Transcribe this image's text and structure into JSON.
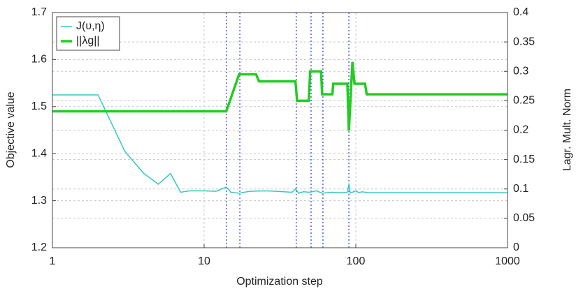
{
  "chart_data": {
    "type": "line",
    "xlabel": "Optimization step",
    "ylabel": "Objective value",
    "y2label": "Lagr. Mult. Norm",
    "xscale": "log",
    "xlim": [
      1,
      1000
    ],
    "xticks": [
      1,
      10,
      100,
      1000
    ],
    "ylim": [
      1.2,
      1.7
    ],
    "yticks": [
      1.2,
      1.3,
      1.4,
      1.5,
      1.6,
      1.7
    ],
    "y2lim": [
      0,
      0.4
    ],
    "y2ticks": [
      0,
      0.05,
      0.1,
      0.15,
      0.2,
      0.25,
      0.3,
      0.35,
      0.4
    ],
    "grid": true,
    "legend": "upper left",
    "vlines": [
      14,
      17.2,
      40.5,
      50.7,
      60.7,
      90
    ],
    "vline_color": "#2233dd",
    "series": [
      {
        "name": "J(υ,η)",
        "color": "#33c9c0",
        "width": 1.5,
        "x": [
          1,
          2,
          3,
          4,
          5,
          6,
          7,
          8,
          10,
          12,
          14,
          15,
          17,
          20,
          25,
          30,
          38,
          40,
          42,
          45,
          50,
          55,
          60,
          70,
          80,
          88,
          90,
          92,
          100,
          105,
          110,
          120,
          200,
          500,
          1000
        ],
        "values": [
          1.525,
          1.525,
          1.405,
          1.358,
          1.335,
          1.358,
          1.318,
          1.321,
          1.321,
          1.32,
          1.329,
          1.318,
          1.316,
          1.32,
          1.321,
          1.32,
          1.318,
          1.325,
          1.316,
          1.319,
          1.318,
          1.321,
          1.316,
          1.318,
          1.317,
          1.318,
          1.335,
          1.316,
          1.321,
          1.317,
          1.319,
          1.317,
          1.317,
          1.317,
          1.317
        ]
      },
      {
        "name": "||λg||",
        "color": "#22cc22",
        "width": 3.5,
        "axis": "y2",
        "x": [
          1,
          14,
          17,
          22,
          23,
          40,
          41,
          49,
          50,
          59,
          60,
          70,
          71,
          88,
          90,
          95,
          98,
          115,
          118,
          1000
        ],
        "values": [
          0.232,
          0.232,
          0.295,
          0.295,
          0.283,
          0.283,
          0.25,
          0.25,
          0.3,
          0.3,
          0.261,
          0.261,
          0.279,
          0.279,
          0.199,
          0.316,
          0.279,
          0.279,
          0.261,
          0.261
        ]
      }
    ]
  }
}
